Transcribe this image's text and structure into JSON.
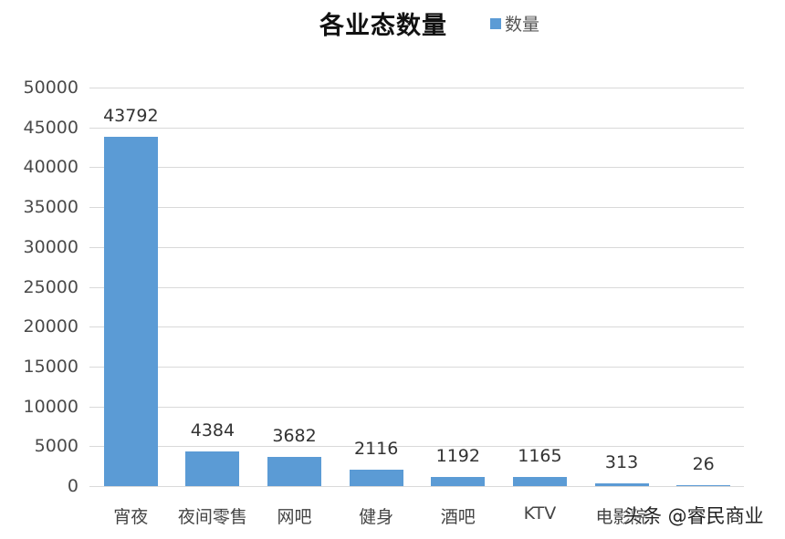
{
  "chart_data": {
    "type": "bar",
    "title": "各业态数量",
    "legend": [
      "数量"
    ],
    "legend_position": "top",
    "categories": [
      "宵夜",
      "夜间零售",
      "网吧",
      "健身",
      "酒吧",
      "KTV",
      "电影院",
      ""
    ],
    "series": [
      {
        "name": "数量",
        "values": [
          43792,
          4384,
          3682,
          2116,
          1192,
          1165,
          313,
          26
        ],
        "color": "#5b9bd5"
      }
    ],
    "xlabel": "",
    "ylabel": "",
    "ylim": [
      0,
      50000
    ],
    "yticks": [
      "0",
      "5000",
      "10000",
      "15000",
      "20000",
      "25000",
      "30000",
      "35000",
      "40000",
      "45000",
      "50000"
    ],
    "grid": true,
    "data_labels": [
      "43792",
      "4384",
      "3682",
      "2116",
      "1192",
      "1165",
      "313",
      "26"
    ]
  },
  "watermark": "头条 @睿民商业"
}
